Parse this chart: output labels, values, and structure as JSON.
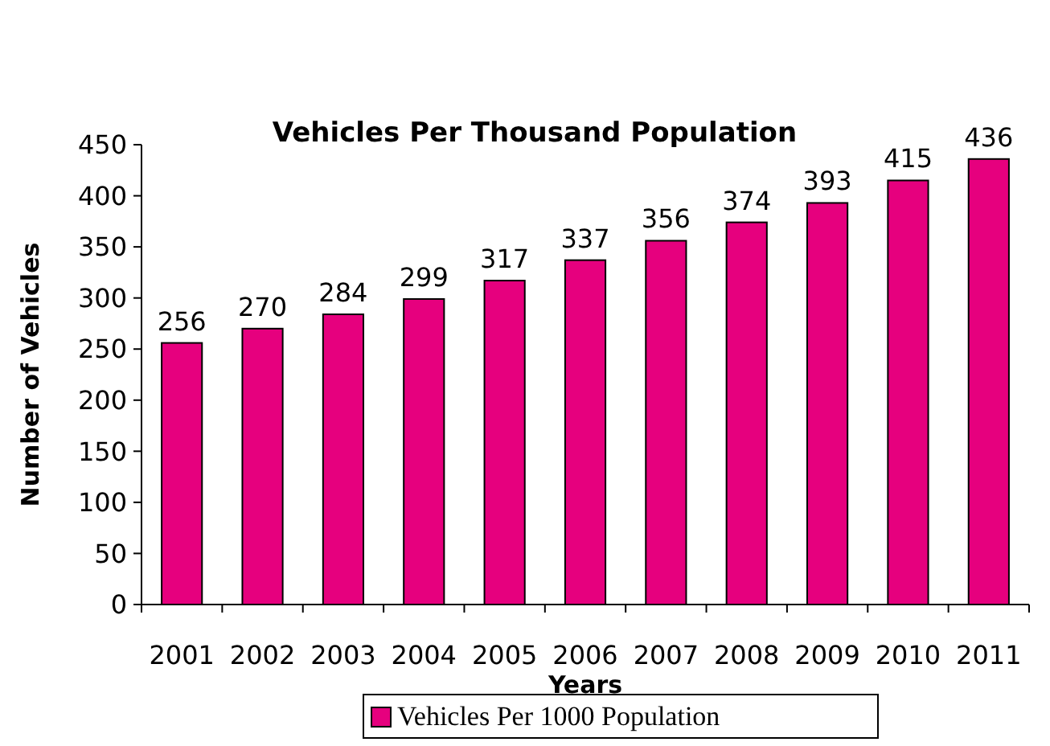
{
  "chart_data": {
    "type": "bar",
    "title": "Vehicles Per Thousand Population",
    "xlabel": "Years",
    "ylabel": "Number of Vehicles",
    "categories": [
      "2001",
      "2002",
      "2003",
      "2004",
      "2005",
      "2006",
      "2007",
      "2008",
      "2009",
      "2010",
      "2011"
    ],
    "series": [
      {
        "name": "Vehicles Per 1000 Population",
        "color": "#e6007e",
        "values": [
          256,
          270,
          284,
          299,
          317,
          337,
          356,
          374,
          393,
          415,
          436
        ]
      }
    ],
    "ylim": [
      0,
      450
    ],
    "yticks": [
      0,
      50,
      100,
      150,
      200,
      250,
      300,
      350,
      400,
      450
    ],
    "data_labels": true,
    "legend": "bottom",
    "grid": false
  }
}
